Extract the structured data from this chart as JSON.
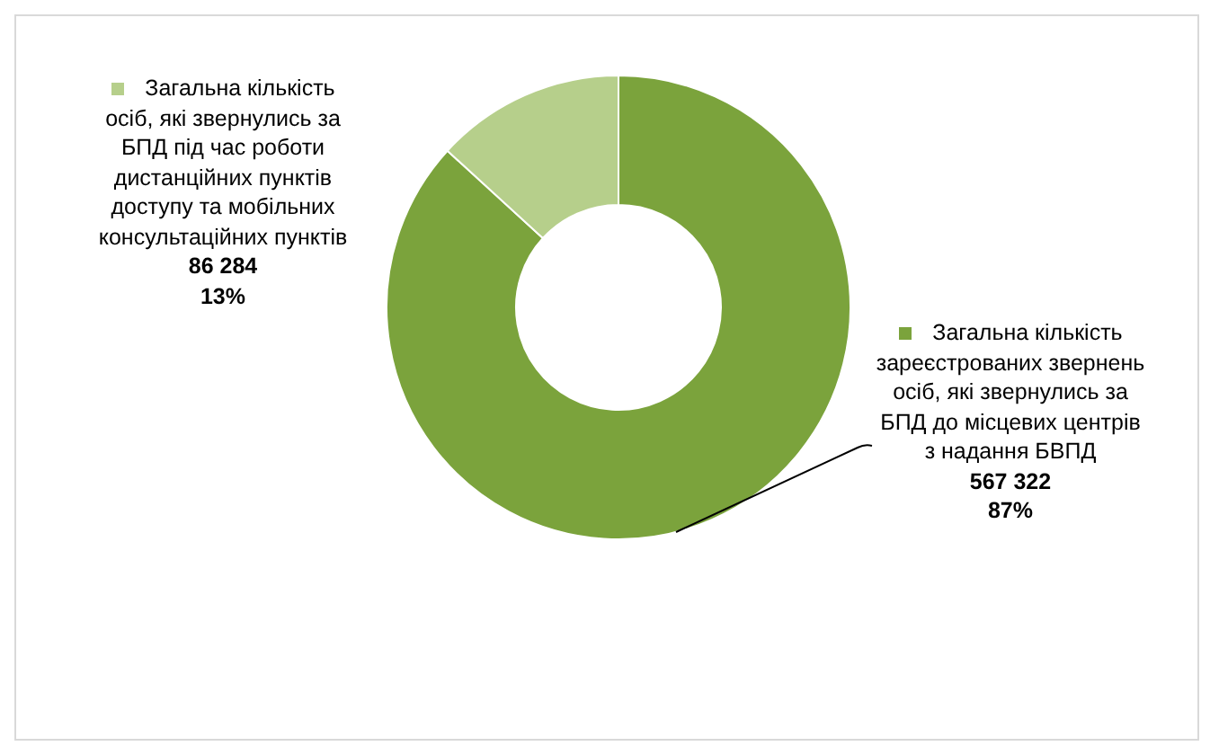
{
  "chart_data": {
    "type": "donut",
    "categories": [
      "Загальна кількість зареєстрованих звернень осіб, які звернулись  за БПД до місцевих центрів з надання БВПД",
      "Загальна кількість осіб, які звернулись за БПД під час роботи дистанційних пунктів доступу та мобільних консультаційних пунктів"
    ],
    "values": [
      567322,
      86284
    ],
    "colors": [
      "#7ba33c",
      "#b6cf8b"
    ],
    "value_labels": [
      "567 322\n87%",
      "86 284\n13%"
    ],
    "legend": "left"
  }
}
